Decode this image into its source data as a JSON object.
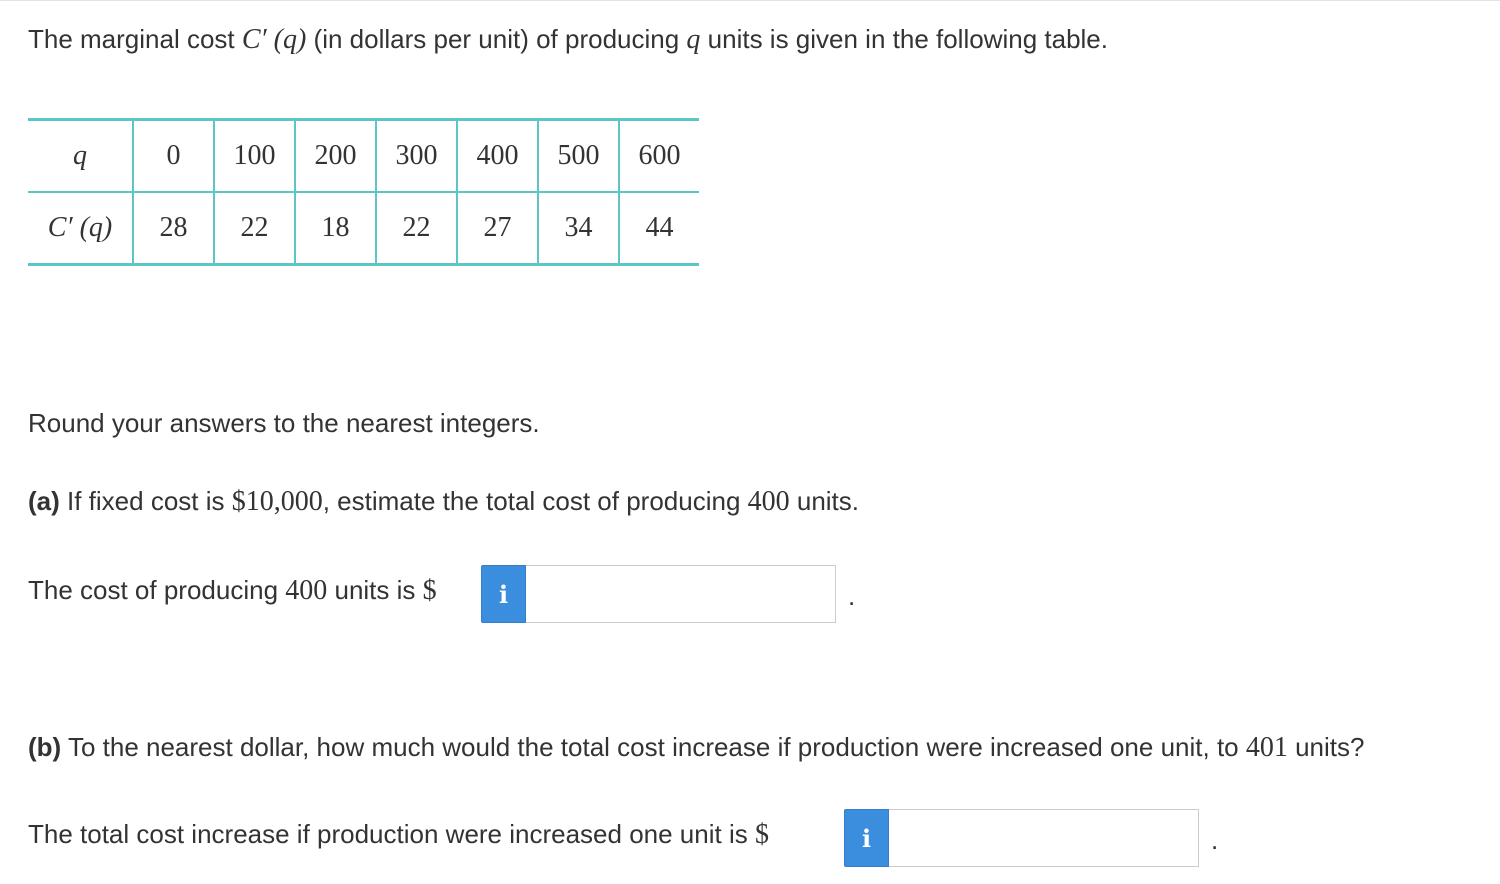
{
  "intro": {
    "part1": "The marginal cost ",
    "math1": "C′ (q)",
    "part2": " (in dollars per unit) of producing ",
    "math2": "q",
    "part3": " units is given in the following table."
  },
  "table": {
    "row1_header": "q",
    "row2_header": "C′ (q)",
    "q_values": [
      "0",
      "100",
      "200",
      "300",
      "400",
      "500",
      "600"
    ],
    "c_values": [
      "28",
      "22",
      "18",
      "22",
      "27",
      "34",
      "44"
    ]
  },
  "instruction": "Round your answers to the nearest integers.",
  "part_a": {
    "label": "(a)",
    "text1": " If fixed cost is ",
    "math": "$10,000",
    "text2": ", estimate the total cost of producing ",
    "math2": "400",
    "text3": " units.",
    "answer_prefix": "The cost of producing ",
    "answer_math": "400",
    "answer_mid": " units is ",
    "answer_dollar": "$",
    "info_glyph": "i",
    "input_value": "",
    "period": "."
  },
  "part_b": {
    "label": "(b)",
    "text1": " To the nearest dollar, how much would the total cost increase if production were increased one unit, to ",
    "math": "401",
    "text2": " units?",
    "answer_prefix": "The total cost increase if production were increased one unit is ",
    "answer_dollar": "$",
    "info_glyph": "i",
    "input_value": "",
    "period": "."
  },
  "colors": {
    "table_border": "#5bc6c3",
    "info_button": "#3b8ede",
    "text": "#333333"
  },
  "icons": {
    "info": "info-icon"
  }
}
